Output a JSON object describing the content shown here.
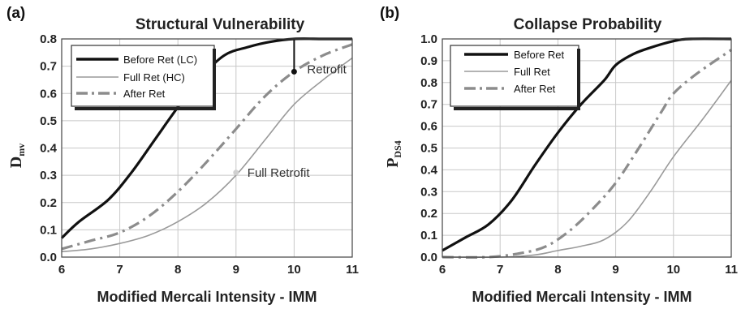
{
  "chart_data": [
    {
      "type": "line",
      "panel_label": "(a)",
      "title": "Structural Vulnerability",
      "xlabel": "Modified Mercali Intensity - IMM",
      "ylabel_main": "D",
      "ylabel_sub": "mv",
      "xlim": [
        6,
        11
      ],
      "ylim": [
        0,
        0.8
      ],
      "xticks": [
        "6",
        "7",
        "8",
        "9",
        "10",
        "11"
      ],
      "yticks": [
        "0.0",
        "0.1",
        "0.2",
        "0.3",
        "0.4",
        "0.5",
        "0.6",
        "0.7",
        "0.8"
      ],
      "grid": true,
      "legend_position": "top-left",
      "series": [
        {
          "name": "Before Ret (LC)",
          "style": "solid-thick",
          "color": "#111111",
          "x": [
            6,
            6.3,
            6.8,
            7.2,
            7.6,
            8.0,
            8.4,
            8.8,
            9.2,
            9.6,
            10.0,
            10.5,
            11
          ],
          "y": [
            0.07,
            0.13,
            0.21,
            0.31,
            0.43,
            0.55,
            0.66,
            0.74,
            0.77,
            0.79,
            0.8,
            0.8,
            0.8
          ]
        },
        {
          "name": "Full Ret (HC)",
          "style": "solid-thin",
          "color": "#9a9a9a",
          "x": [
            6,
            6.5,
            7.0,
            7.5,
            8.0,
            8.5,
            9.0,
            9.5,
            10.0,
            10.5,
            11
          ],
          "y": [
            0.02,
            0.03,
            0.05,
            0.08,
            0.13,
            0.2,
            0.3,
            0.43,
            0.56,
            0.65,
            0.73
          ]
        },
        {
          "name": "After Ret",
          "style": "dash-dot",
          "color": "#8c8c8c",
          "x": [
            6,
            6.5,
            7.0,
            7.5,
            8.0,
            8.5,
            9.0,
            9.5,
            10.0,
            10.5,
            11
          ],
          "y": [
            0.03,
            0.06,
            0.09,
            0.15,
            0.24,
            0.35,
            0.47,
            0.59,
            0.68,
            0.74,
            0.78
          ]
        }
      ],
      "annotations": [
        {
          "text": "Retrofit",
          "x": 10.0,
          "y": 0.68
        },
        {
          "text": "Full Retrofit",
          "x": 9.0,
          "y": 0.31
        }
      ],
      "retrofit_drop": {
        "x": 10.0,
        "from": 0.8,
        "to": 0.68
      }
    },
    {
      "type": "line",
      "panel_label": "(b)",
      "title": "Collapse Probability",
      "xlabel": "Modified Mercali Intensity - IMM",
      "ylabel_main": "P",
      "ylabel_sub": "DS4",
      "xlim": [
        6,
        11
      ],
      "ylim": [
        0,
        1.0
      ],
      "xticks": [
        "6",
        "7",
        "8",
        "9",
        "10",
        "11"
      ],
      "yticks": [
        "0.0",
        "0.1",
        "0.2",
        "0.3",
        "0.4",
        "0.5",
        "0.6",
        "0.7",
        "0.8",
        "0.9",
        "1.0"
      ],
      "grid": true,
      "legend_position": "top-left",
      "series": [
        {
          "name": "Before Ret",
          "style": "solid-thick",
          "color": "#111111",
          "x": [
            6,
            6.4,
            6.8,
            7.2,
            7.6,
            8.0,
            8.4,
            8.8,
            9.0,
            9.3,
            9.6,
            10.0,
            10.3,
            11
          ],
          "y": [
            0.03,
            0.09,
            0.15,
            0.26,
            0.42,
            0.57,
            0.7,
            0.81,
            0.88,
            0.93,
            0.96,
            0.99,
            1.0,
            1.0
          ]
        },
        {
          "name": "Full Ret",
          "style": "solid-thin",
          "color": "#9a9a9a",
          "x": [
            6,
            7.0,
            7.6,
            8.0,
            8.4,
            8.8,
            9.2,
            9.6,
            10.0,
            10.5,
            11
          ],
          "y": [
            0.0,
            0.0,
            0.01,
            0.03,
            0.05,
            0.08,
            0.16,
            0.3,
            0.46,
            0.63,
            0.81
          ]
        },
        {
          "name": "After Ret",
          "style": "dash-dot",
          "color": "#8c8c8c",
          "x": [
            6,
            6.8,
            7.4,
            7.8,
            8.2,
            8.6,
            9.0,
            9.4,
            9.8,
            10.0,
            10.4,
            11
          ],
          "y": [
            0.0,
            0.0,
            0.02,
            0.05,
            0.12,
            0.22,
            0.34,
            0.5,
            0.67,
            0.75,
            0.84,
            0.95
          ]
        }
      ]
    }
  ]
}
